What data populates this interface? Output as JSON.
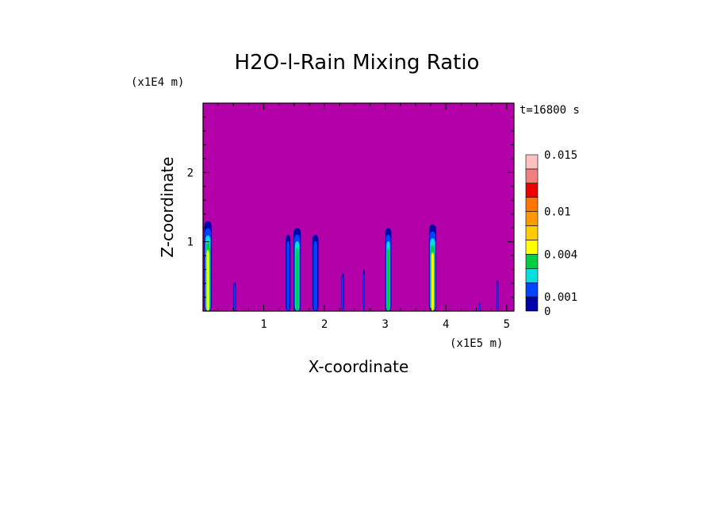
{
  "chart_data": {
    "type": "heatmap",
    "title": "H2O-l-Rain Mixing Ratio",
    "xlabel": "X-coordinate",
    "ylabel": "Z-coordinate",
    "x_unit": "(x1E5 m)",
    "y_unit": "(x1E4 m)",
    "time_label": "t=16800 s",
    "xlim": [
      0,
      5.12
    ],
    "ylim": [
      0,
      3.0
    ],
    "x_ticks": [
      "1",
      "2",
      "3",
      "4",
      "5"
    ],
    "x_tick_values": [
      1,
      2,
      3,
      4,
      5
    ],
    "y_ticks": [
      "1",
      "2"
    ],
    "y_tick_values": [
      1,
      2
    ],
    "background_color": "#b400a8",
    "colorbar": {
      "levels": [
        0,
        0.001,
        0.002,
        0.003,
        0.004,
        0.006,
        0.008,
        0.01,
        0.012,
        0.014,
        0.015
      ],
      "labels": [
        "0",
        "0.001",
        "0.004",
        "0.01",
        "0.015"
      ],
      "label_values": [
        0,
        0.001,
        0.004,
        0.01,
        0.015
      ],
      "colors": [
        "#0000aa",
        "#0044ff",
        "#00e0e0",
        "#00cc44",
        "#ffff00",
        "#ffcc00",
        "#ff9900",
        "#ff7700",
        "#ee0000",
        "#f08080",
        "#ffc0c0"
      ]
    },
    "cells": [
      {
        "x": 0.08,
        "z_top": 1.3,
        "width": 0.12,
        "peak": 0.004
      },
      {
        "x": 0.52,
        "z_top": 0.42,
        "width": 0.04,
        "peak": 0.001
      },
      {
        "x": 1.4,
        "z_top": 1.1,
        "width": 0.08,
        "peak": 0.001
      },
      {
        "x": 1.55,
        "z_top": 1.2,
        "width": 0.12,
        "peak": 0.003
      },
      {
        "x": 1.85,
        "z_top": 1.1,
        "width": 0.1,
        "peak": 0.001
      },
      {
        "x": 2.3,
        "z_top": 0.55,
        "width": 0.04,
        "peak": 0.001
      },
      {
        "x": 2.65,
        "z_top": 0.6,
        "width": 0.03,
        "peak": 0.001
      },
      {
        "x": 3.05,
        "z_top": 1.2,
        "width": 0.1,
        "peak": 0.003
      },
      {
        "x": 3.78,
        "z_top": 1.25,
        "width": 0.12,
        "peak": 0.004
      },
      {
        "x": 4.55,
        "z_top": 0.12,
        "width": 0.03,
        "peak": 0.001
      },
      {
        "x": 4.85,
        "z_top": 0.45,
        "width": 0.03,
        "peak": 0.001
      }
    ]
  }
}
